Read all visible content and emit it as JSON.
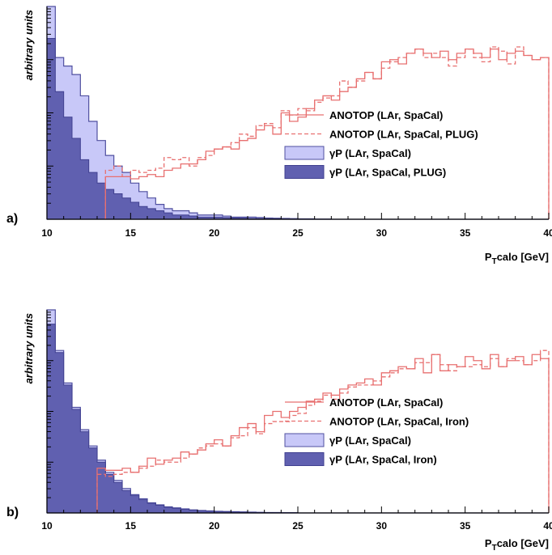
{
  "chart_data": [
    {
      "type": "histogram",
      "panel_label": "a)",
      "xlabel": "P_Tcalo [GeV]",
      "xlabel_main": "P",
      "xlabel_sub": "T",
      "xlabel_rest": "calo [GeV]",
      "ylabel": "arbitrary units",
      "xlim": [
        10,
        40
      ],
      "ylim": [
        0,
        1
      ],
      "xticks": [
        "10",
        "15",
        "20",
        "25",
        "30",
        "35",
        "40"
      ],
      "bin_edges_start": 10,
      "bin_width": 0.5,
      "legend": [
        {
          "label": "ANOTOP (LAr, SpaCal)",
          "style": "solid-line"
        },
        {
          "label": "ANOTOP (LAr, SpaCal, PLUG)",
          "style": "dashed-line"
        },
        {
          "label": "γP (LAr, SpaCal)",
          "style": "light-fill"
        },
        {
          "label": "γP (LAr, SpaCal, PLUG)",
          "style": "dark-fill"
        }
      ],
      "series": [
        {
          "name": "ANOTOP (LAr, SpaCal)",
          "style": "solid-line",
          "values": [
            0.0,
            0.0,
            0.0,
            0.0,
            0.0,
            0.0,
            0.0,
            0.2,
            0.2,
            0.2,
            0.19,
            0.2,
            0.21,
            0.2,
            0.23,
            0.24,
            0.26,
            0.26,
            0.28,
            0.32,
            0.33,
            0.34,
            0.33,
            0.37,
            0.38,
            0.42,
            0.44,
            0.4,
            0.5,
            0.46,
            0.48,
            0.52,
            0.56,
            0.58,
            0.56,
            0.6,
            0.62,
            0.66,
            0.69,
            0.66,
            0.74,
            0.75,
            0.73,
            0.78,
            0.8,
            0.78,
            0.76,
            0.79,
            0.75,
            0.78,
            0.8,
            0.78,
            0.76,
            0.8,
            0.75,
            0.78,
            0.79,
            0.77,
            0.75,
            0.76
          ]
        },
        {
          "name": "ANOTOP (LAr, SpaCal, PLUG)",
          "style": "dashed-line",
          "values": [
            0.0,
            0.0,
            0.0,
            0.0,
            0.0,
            0.0,
            0.0,
            0.23,
            0.25,
            0.2,
            0.23,
            0.22,
            0.23,
            0.24,
            0.29,
            0.28,
            0.29,
            0.25,
            0.29,
            0.3,
            0.33,
            0.34,
            0.36,
            0.4,
            0.39,
            0.44,
            0.45,
            0.43,
            0.51,
            0.49,
            0.52,
            0.51,
            0.55,
            0.57,
            0.58,
            0.65,
            0.62,
            0.65,
            0.69,
            0.66,
            0.71,
            0.74,
            0.76,
            0.78,
            0.8,
            0.76,
            0.78,
            0.76,
            0.72,
            0.76,
            0.8,
            0.76,
            0.74,
            0.81,
            0.79,
            0.73,
            0.81,
            0.77,
            0.75,
            0.76
          ]
        },
        {
          "name": "γP (LAr, SpaCal)",
          "style": "light-fill",
          "values": [
            1.0,
            0.76,
            0.72,
            0.68,
            0.58,
            0.46,
            0.37,
            0.3,
            0.25,
            0.22,
            0.17,
            0.13,
            0.1,
            0.07,
            0.05,
            0.04,
            0.04,
            0.03,
            0.02,
            0.02,
            0.02,
            0.015,
            0.01,
            0.01,
            0.01,
            0.008,
            0.006,
            0.005,
            0.004,
            0.003,
            0.002,
            0.002,
            0.001,
            0.001,
            0,
            0,
            0,
            0,
            0,
            0,
            0,
            0,
            0,
            0,
            0,
            0,
            0,
            0,
            0,
            0,
            0,
            0,
            0,
            0,
            0,
            0,
            0,
            0,
            0,
            0
          ]
        },
        {
          "name": "γP (LAr, SpaCal, PLUG)",
          "style": "dark-fill",
          "values": [
            0.85,
            0.6,
            0.48,
            0.38,
            0.28,
            0.22,
            0.17,
            0.14,
            0.12,
            0.1,
            0.08,
            0.06,
            0.05,
            0.04,
            0.03,
            0.02,
            0.02,
            0.015,
            0.01,
            0.01,
            0.01,
            0.008,
            0.006,
            0.005,
            0.004,
            0.003,
            0.002,
            0.002,
            0.001,
            0.001,
            0,
            0,
            0,
            0,
            0,
            0,
            0,
            0,
            0,
            0,
            0,
            0,
            0,
            0,
            0,
            0,
            0,
            0,
            0,
            0,
            0,
            0,
            0,
            0,
            0,
            0,
            0,
            0,
            0,
            0
          ]
        }
      ]
    },
    {
      "type": "histogram",
      "panel_label": "b)",
      "xlabel": "P_Tcalo [GeV]",
      "xlabel_main": "P",
      "xlabel_sub": "T",
      "xlabel_rest": "calo [GeV]",
      "ylabel": "arbitrary units",
      "xlim": [
        10,
        40
      ],
      "ylim": [
        0,
        1
      ],
      "xticks": [
        "10",
        "15",
        "20",
        "25",
        "30",
        "35",
        "40"
      ],
      "bin_edges_start": 10,
      "bin_width": 0.5,
      "legend": [
        {
          "label": "ANOTOP (LAr, SpaCal)",
          "style": "solid-line"
        },
        {
          "label": "ANOTOP (LAr, SpaCal, Iron)",
          "style": "dashed-line"
        },
        {
          "label": "γP (LAr, SpaCal)",
          "style": "light-fill"
        },
        {
          "label": "γP (LAr, SpaCal, Iron)",
          "style": "dark-fill"
        }
      ],
      "series": [
        {
          "name": "ANOTOP (LAr, SpaCal)",
          "style": "solid-line",
          "values": [
            0.0,
            0.0,
            0.0,
            0.0,
            0.0,
            0.0,
            0.22,
            0.21,
            0.21,
            0.22,
            0.2,
            0.23,
            0.27,
            0.24,
            0.26,
            0.27,
            0.3,
            0.29,
            0.31,
            0.34,
            0.36,
            0.33,
            0.38,
            0.42,
            0.44,
            0.4,
            0.48,
            0.5,
            0.47,
            0.5,
            0.52,
            0.55,
            0.56,
            0.59,
            0.58,
            0.61,
            0.63,
            0.64,
            0.66,
            0.63,
            0.69,
            0.7,
            0.72,
            0.71,
            0.76,
            0.69,
            0.78,
            0.7,
            0.73,
            0.72,
            0.77,
            0.75,
            0.71,
            0.78,
            0.72,
            0.75,
            0.77,
            0.73,
            0.78,
            0.76
          ]
        },
        {
          "name": "ANOTOP (LAr, SpaCal, Iron)",
          "style": "dashed-line",
          "values": [
            0.0,
            0.0,
            0.0,
            0.0,
            0.0,
            0.0,
            0.19,
            0.18,
            0.19,
            0.2,
            0.2,
            0.22,
            0.23,
            0.26,
            0.25,
            0.25,
            0.27,
            0.29,
            0.32,
            0.33,
            0.34,
            0.33,
            0.37,
            0.38,
            0.42,
            0.39,
            0.44,
            0.45,
            0.45,
            0.48,
            0.49,
            0.53,
            0.55,
            0.58,
            0.56,
            0.59,
            0.62,
            0.63,
            0.63,
            0.65,
            0.67,
            0.69,
            0.71,
            0.71,
            0.74,
            0.74,
            0.78,
            0.73,
            0.7,
            0.72,
            0.72,
            0.73,
            0.72,
            0.76,
            0.72,
            0.76,
            0.75,
            0.73,
            0.75,
            0.8
          ]
        },
        {
          "name": "γP (LAr, SpaCal)",
          "style": "light-fill",
          "values": [
            1.0,
            0.8,
            0.64,
            0.52,
            0.41,
            0.33,
            0.26,
            0.2,
            0.16,
            0.12,
            0.09,
            0.07,
            0.05,
            0.04,
            0.03,
            0.025,
            0.02,
            0.015,
            0.012,
            0.01,
            0.008,
            0.007,
            0.006,
            0.005,
            0.004,
            0.003,
            0.002,
            0.002,
            0.001,
            0.001,
            0,
            0,
            0,
            0,
            0,
            0,
            0,
            0,
            0,
            0,
            0,
            0,
            0,
            0,
            0,
            0,
            0,
            0,
            0,
            0,
            0,
            0,
            0,
            0,
            0,
            0,
            0,
            0,
            0,
            0
          ]
        },
        {
          "name": "γP (LAr, SpaCal, Iron)",
          "style": "dark-fill",
          "values": [
            0.93,
            0.79,
            0.63,
            0.51,
            0.4,
            0.32,
            0.25,
            0.19,
            0.15,
            0.11,
            0.085,
            0.065,
            0.048,
            0.038,
            0.028,
            0.023,
            0.018,
            0.014,
            0.011,
            0.009,
            0.007,
            0.006,
            0.005,
            0.004,
            0.003,
            0.002,
            0.002,
            0.001,
            0.001,
            0.001,
            0,
            0,
            0,
            0,
            0,
            0,
            0,
            0,
            0,
            0,
            0,
            0,
            0,
            0,
            0,
            0,
            0,
            0,
            0,
            0,
            0,
            0,
            0,
            0,
            0,
            0,
            0,
            0,
            0,
            0
          ]
        }
      ]
    }
  ],
  "colors": {
    "light_fill": "#c8c8f8",
    "light_stroke": "#5050a0",
    "dark_fill": "#6060b0",
    "dark_stroke": "#404090",
    "anotop_line": "#e87070"
  }
}
